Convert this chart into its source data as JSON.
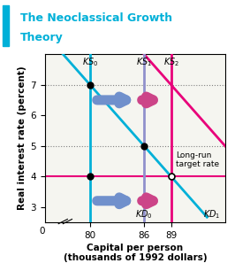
{
  "title_line1": "The Neoclassical Growth",
  "title_line2": "Theory",
  "title_color": "#00b0d8",
  "title_fontsize": 9,
  "xlabel": "Capital per person\n(thousands of 1992 dollars)",
  "ylabel": "Real interest rate (percent)",
  "xlim": [
    75,
    95
  ],
  "ylim": [
    2.5,
    8
  ],
  "x_ticks": [
    80,
    86,
    89
  ],
  "y_ticks": [
    3,
    4,
    5,
    6,
    7
  ],
  "KS0_x": 80,
  "KS1_x": 86,
  "KS2_x": 89,
  "KD_slope": -0.5,
  "KD_intercept": 47,
  "long_run_rate": 4,
  "long_run_color": "#e8007a",
  "KS0_color": "#00b0d8",
  "KS1_color": "#9090cc",
  "KS2_color": "#e8007a",
  "KD_color": "#00b0d8",
  "KD1_color": "#e8007a",
  "dot1_x": 80,
  "dot1_y": 7,
  "dot2_x": 86,
  "dot2_y": 5,
  "dot3_x": 89,
  "dot3_y": 4,
  "background_color": "#ffffff",
  "panel_color": "#f5f5f0"
}
